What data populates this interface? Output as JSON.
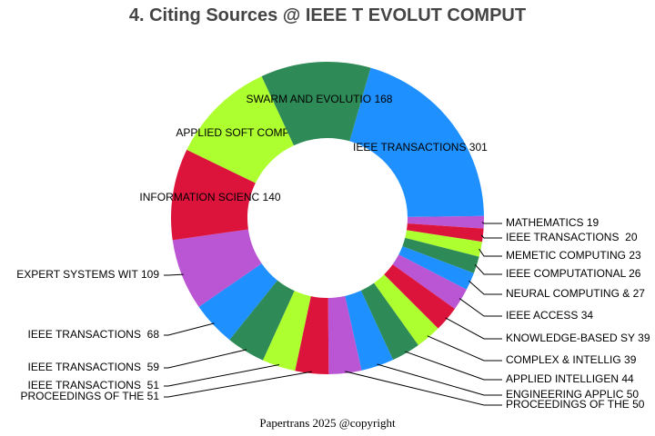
{
  "chart_data": {
    "type": "pie",
    "variant": "donut",
    "title": "4. Citing Sources @ IEEE T EVOLUT COMPUT",
    "footer": "Papertrans 2025 @copyright",
    "colors": [
      "#1E90FF",
      "#BA55D3",
      "#DC143C",
      "#ADFF2F",
      "#2E8B57"
    ],
    "slices": [
      {
        "label": "IEEE TRANSACTIONS ",
        "value": 301
      },
      {
        "label": "MATHEMATICS",
        "value": 19
      },
      {
        "label": "IEEE TRANSACTIONS ",
        "value": 20
      },
      {
        "label": "MEMETIC COMPUTING",
        "value": 23
      },
      {
        "label": "IEEE COMPUTATIONAL",
        "value": 26
      },
      {
        "label": "NEURAL COMPUTING &",
        "value": 27
      },
      {
        "label": "IEEE ACCESS",
        "value": 34
      },
      {
        "label": "KNOWLEDGE-BASED SY",
        "value": 39
      },
      {
        "label": "COMPLEX & INTELLIG",
        "value": 39
      },
      {
        "label": "APPLIED INTELLIGEN",
        "value": 44
      },
      {
        "label": "ENGINEERING APPLIC",
        "value": 50
      },
      {
        "label": "PROCEEDINGS OF THE",
        "value": 50
      },
      {
        "label": "PROCEEDINGS OF THE",
        "value": 51
      },
      {
        "label": "IEEE TRANSACTIONS ",
        "value": 51
      },
      {
        "label": "IEEE TRANSACTIONS ",
        "value": 59
      },
      {
        "label": "IEEE TRANSACTIONS ",
        "value": 68
      },
      {
        "label": "EXPERT SYSTEMS WIT",
        "value": 109
      },
      {
        "label": "INFORMATION SCIENC",
        "value": 140
      },
      {
        "label": "APPLIED SOFT COMPU",
        "value": 161
      },
      {
        "label": "SWARM AND EVOLUTIO",
        "value": 168
      }
    ]
  }
}
